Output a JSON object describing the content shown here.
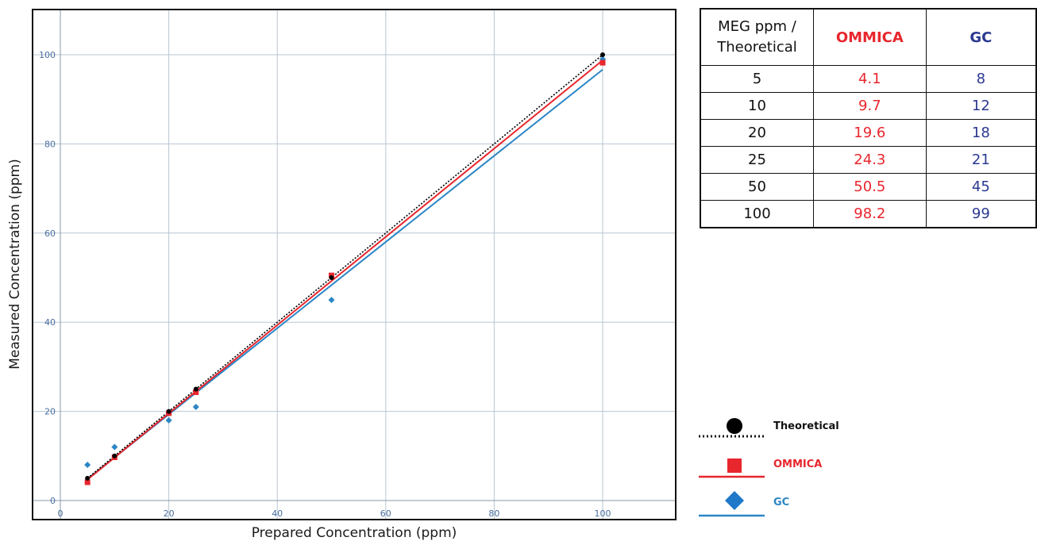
{
  "chart_data": {
    "type": "scatter",
    "xlabel": "Prepared Concentration (ppm)",
    "ylabel": "Measured Concentration (ppm)",
    "xlim": [
      0,
      113
    ],
    "ylim": [
      0,
      108
    ],
    "x_ticks": [
      0,
      20,
      40,
      60,
      80,
      100
    ],
    "y_ticks": [
      0,
      20,
      40,
      60,
      80,
      100
    ],
    "grid": true,
    "legend_position": "bottom-right",
    "x": [
      5,
      10,
      20,
      25,
      50,
      100
    ],
    "series": [
      {
        "name": "Theoretical",
        "values": [
          5,
          10,
          20,
          25,
          50,
          100
        ],
        "color": "#000000",
        "marker": "circle",
        "line": "dotted"
      },
      {
        "name": "OMMICA",
        "values": [
          4.1,
          9.7,
          19.6,
          24.3,
          50.5,
          98.2
        ],
        "color": "#e8262d",
        "marker": "square",
        "line": "solid"
      },
      {
        "name": "GC",
        "values": [
          8,
          12,
          18,
          21,
          45,
          99
        ],
        "color": "#2b86c5",
        "marker": "diamond",
        "line": "solid"
      }
    ]
  },
  "table": {
    "header": {
      "theoretical_line1": "MEG ppm /",
      "theoretical_line2": "Theoretical",
      "ommica": "OMMICA",
      "gc": "GC"
    },
    "rows": [
      {
        "theoretical": "5",
        "ommica": "4.1",
        "gc": "8"
      },
      {
        "theoretical": "10",
        "ommica": "9.7",
        "gc": "12"
      },
      {
        "theoretical": "20",
        "ommica": "19.6",
        "gc": "18"
      },
      {
        "theoretical": "25",
        "ommica": "24.3",
        "gc": "21"
      },
      {
        "theoretical": "50",
        "ommica": "50.5",
        "gc": "45"
      },
      {
        "theoretical": "100",
        "ommica": "98.2",
        "gc": "99"
      }
    ]
  },
  "legend": {
    "theoretical": {
      "label": "Theoretical",
      "color": "#111111"
    },
    "ommica": {
      "label": "OMMICA",
      "color": "#e8262d"
    },
    "gc": {
      "label": "GC",
      "color": "#2b86c5"
    }
  }
}
